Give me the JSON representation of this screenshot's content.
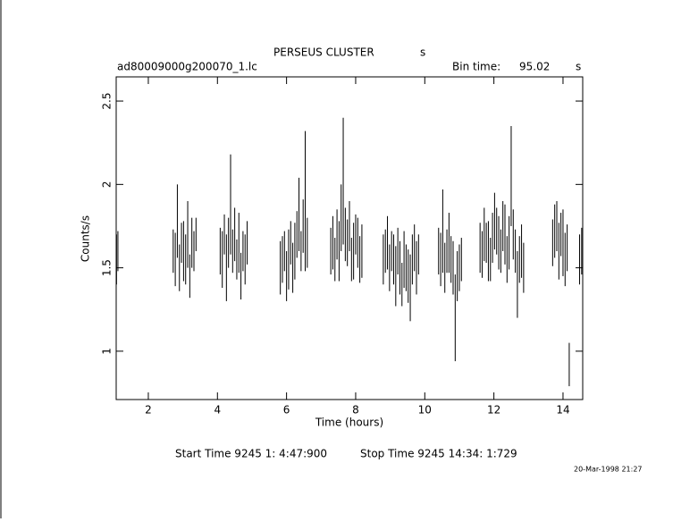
{
  "chart_data": {
    "type": "errorbar",
    "title": "PERSEUS CLUSTER",
    "title_unit": "s",
    "filename": "ad80009000g200070_1.lc",
    "bin_time_label": "Bin time:",
    "bin_time": "95.02",
    "bin_time_unit": "s",
    "xlabel": "Time (hours)",
    "ylabel": "Counts/s",
    "start_time": "Start Time  9245  1: 4:47:900",
    "stop_time": "Stop Time  9245 14:34: 1:729",
    "date": "20-Mar-1998 21:27",
    "color": "#000000",
    "xlim": [
      1.07,
      14.57
    ],
    "ylim": [
      0.71,
      2.645
    ],
    "xticks": [
      2,
      4,
      6,
      8,
      10,
      12,
      14
    ],
    "yticks": [
      1,
      1.5,
      2,
      2.5
    ],
    "x": [
      1.08,
      1.12,
      2.72,
      2.78,
      2.84,
      2.9,
      2.96,
      3.02,
      3.08,
      3.14,
      3.2,
      3.26,
      3.32,
      3.38,
      4.08,
      4.14,
      4.2,
      4.26,
      4.32,
      4.38,
      4.44,
      4.5,
      4.56,
      4.62,
      4.68,
      4.74,
      4.8,
      4.86,
      5.82,
      5.88,
      5.94,
      6.0,
      6.06,
      6.12,
      6.18,
      6.24,
      6.3,
      6.36,
      6.42,
      6.48,
      6.54,
      6.6,
      7.28,
      7.34,
      7.4,
      7.46,
      7.52,
      7.58,
      7.64,
      7.7,
      7.76,
      7.82,
      7.88,
      7.94,
      8.0,
      8.06,
      8.12,
      8.18,
      8.8,
      8.86,
      8.92,
      8.98,
      9.04,
      9.1,
      9.16,
      9.22,
      9.28,
      9.34,
      9.4,
      9.46,
      9.52,
      9.58,
      9.64,
      9.7,
      9.76,
      9.82,
      10.4,
      10.46,
      10.52,
      10.58,
      10.64,
      10.7,
      10.76,
      10.82,
      10.88,
      10.94,
      11.0,
      11.06,
      11.6,
      11.66,
      11.72,
      11.78,
      11.84,
      11.9,
      11.96,
      12.02,
      12.08,
      12.14,
      12.2,
      12.26,
      12.32,
      12.38,
      12.44,
      12.5,
      12.56,
      12.62,
      12.68,
      12.74,
      12.8,
      12.86,
      13.7,
      13.76,
      13.82,
      13.88,
      13.94,
      14.0,
      14.06,
      14.12,
      14.18,
      14.48,
      14.54
    ],
    "values": [
      1.55,
      1.6,
      1.6,
      1.55,
      1.78,
      1.5,
      1.65,
      1.6,
      1.55,
      1.7,
      1.45,
      1.65,
      1.6,
      1.7,
      1.6,
      1.55,
      1.7,
      1.5,
      1.65,
      1.88,
      1.6,
      1.7,
      1.55,
      1.65,
      1.45,
      1.6,
      1.55,
      1.65,
      1.5,
      1.55,
      1.6,
      1.45,
      1.55,
      1.65,
      1.5,
      1.6,
      1.7,
      1.82,
      1.6,
      1.75,
      1.9,
      1.65,
      1.6,
      1.65,
      1.55,
      1.7,
      1.6,
      1.8,
      2.02,
      1.7,
      1.65,
      1.75,
      1.55,
      1.6,
      1.7,
      1.65,
      1.55,
      1.6,
      1.55,
      1.6,
      1.65,
      1.5,
      1.6,
      1.55,
      1.45,
      1.6,
      1.5,
      1.4,
      1.55,
      1.5,
      1.45,
      1.38,
      1.55,
      1.62,
      1.5,
      1.58,
      1.6,
      1.55,
      1.72,
      1.5,
      1.6,
      1.65,
      1.55,
      1.5,
      1.2,
      1.45,
      1.5,
      1.55,
      1.62,
      1.58,
      1.7,
      1.65,
      1.6,
      1.55,
      1.68,
      1.78,
      1.72,
      1.65,
      1.6,
      1.75,
      1.7,
      1.55,
      1.65,
      2.05,
      1.7,
      1.6,
      1.4,
      1.55,
      1.6,
      1.5,
      1.65,
      1.72,
      1.75,
      1.6,
      1.7,
      1.65,
      1.55,
      1.62,
      0.92,
      1.55,
      1.6
    ],
    "errors": [
      0.15,
      0.12,
      0.13,
      0.16,
      0.22,
      0.14,
      0.12,
      0.18,
      0.15,
      0.2,
      0.13,
      0.15,
      0.12,
      0.1,
      0.14,
      0.17,
      0.12,
      0.2,
      0.15,
      0.3,
      0.13,
      0.16,
      0.12,
      0.18,
      0.14,
      0.12,
      0.15,
      0.13,
      0.16,
      0.14,
      0.12,
      0.15,
      0.18,
      0.13,
      0.15,
      0.17,
      0.14,
      0.22,
      0.12,
      0.16,
      0.42,
      0.15,
      0.14,
      0.16,
      0.13,
      0.15,
      0.18,
      0.2,
      0.38,
      0.16,
      0.14,
      0.15,
      0.13,
      0.17,
      0.12,
      0.15,
      0.14,
      0.16,
      0.15,
      0.13,
      0.16,
      0.14,
      0.12,
      0.15,
      0.18,
      0.14,
      0.16,
      0.13,
      0.17,
      0.14,
      0.16,
      0.2,
      0.15,
      0.14,
      0.16,
      0.12,
      0.14,
      0.16,
      0.25,
      0.15,
      0.13,
      0.18,
      0.14,
      0.16,
      0.26,
      0.15,
      0.14,
      0.13,
      0.15,
      0.14,
      0.16,
      0.12,
      0.18,
      0.13,
      0.15,
      0.17,
      0.14,
      0.16,
      0.13,
      0.15,
      0.18,
      0.14,
      0.16,
      0.3,
      0.15,
      0.13,
      0.2,
      0.14,
      0.16,
      0.15,
      0.14,
      0.16,
      0.15,
      0.17,
      0.13,
      0.2,
      0.16,
      0.14,
      0.13,
      0.15,
      0.14
    ]
  }
}
